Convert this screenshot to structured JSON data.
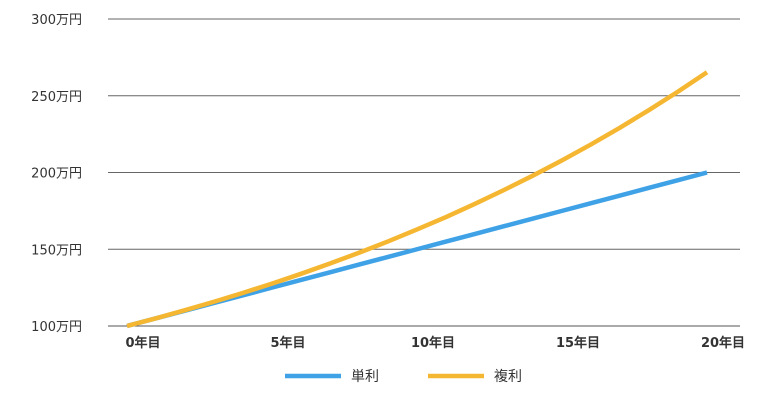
{
  "chart_data": {
    "type": "line",
    "x": [
      0,
      1,
      2,
      3,
      4,
      5,
      6,
      7,
      8,
      9,
      10,
      11,
      12,
      13,
      14,
      15,
      16,
      17,
      18,
      19,
      20
    ],
    "x_tick_values": [
      0,
      5,
      10,
      15,
      20
    ],
    "x_tick_labels": [
      "0年目",
      "5年目",
      "10年目",
      "15年目",
      "20年目"
    ],
    "y_tick_values": [
      100,
      150,
      200,
      250,
      300
    ],
    "y_tick_labels": [
      "100万円",
      "150万円",
      "200万円",
      "250万円",
      "300万円"
    ],
    "ylim": [
      100,
      300
    ],
    "xlim": [
      0,
      20
    ],
    "grid": "horizontal",
    "legend_position": "bottom",
    "series": [
      {
        "name": "単利",
        "color": "#3fa2e6",
        "values": [
          100,
          105,
          110,
          115,
          120,
          125,
          130,
          135,
          140,
          145,
          150,
          155,
          160,
          165,
          170,
          175,
          180,
          185,
          190,
          195,
          200
        ]
      },
      {
        "name": "複利",
        "color": "#f5b731",
        "values": [
          100,
          105,
          110.3,
          115.8,
          121.6,
          127.6,
          134,
          140.7,
          147.7,
          155.1,
          162.9,
          171,
          179.6,
          188.6,
          198,
          207.9,
          218.3,
          229.2,
          240.7,
          252.7,
          265.3
        ]
      }
    ]
  }
}
